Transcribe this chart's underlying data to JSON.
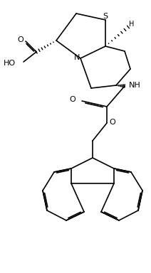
{
  "bg_color": "#ffffff",
  "line_color": "#000000",
  "line_width": 1.2,
  "font_size": 8.0,
  "fig_width": 2.12,
  "fig_height": 3.84,
  "dpi": 100
}
